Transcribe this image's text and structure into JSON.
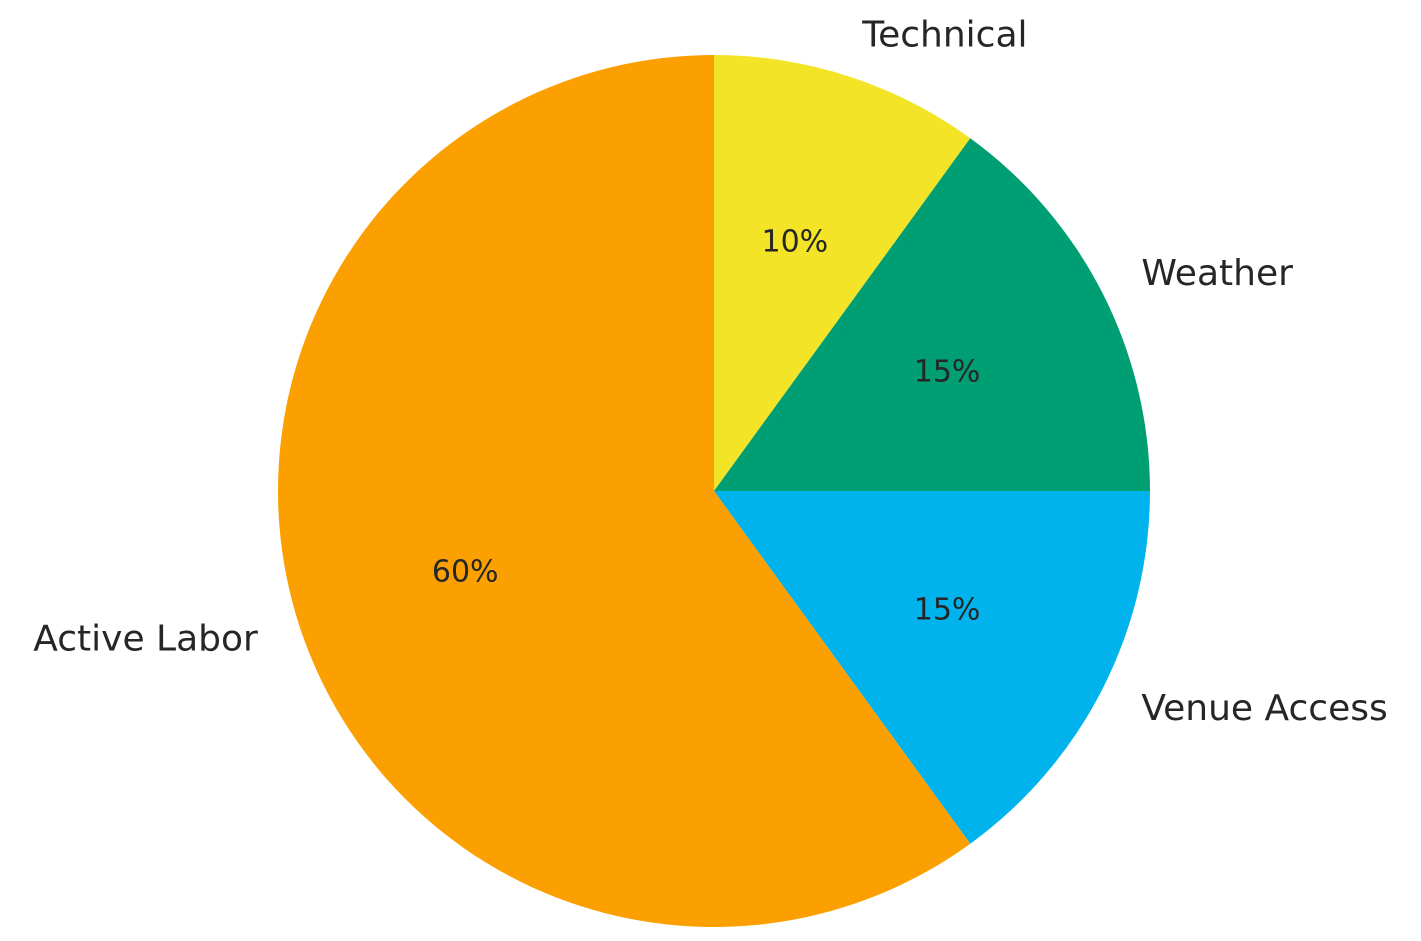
{
  "chart_data": {
    "type": "pie",
    "categories": [
      "Technical",
      "Weather",
      "Venue Access",
      "Active Labor"
    ],
    "values": [
      10,
      15,
      15,
      60
    ],
    "value_labels": [
      "10%",
      "15%",
      "15%",
      "60%"
    ],
    "colors": [
      "#f4e427",
      "#009e73",
      "#00b3ec",
      "#fba000"
    ],
    "start_angle_deg": 90,
    "direction": "clockwise",
    "legend": "none"
  }
}
